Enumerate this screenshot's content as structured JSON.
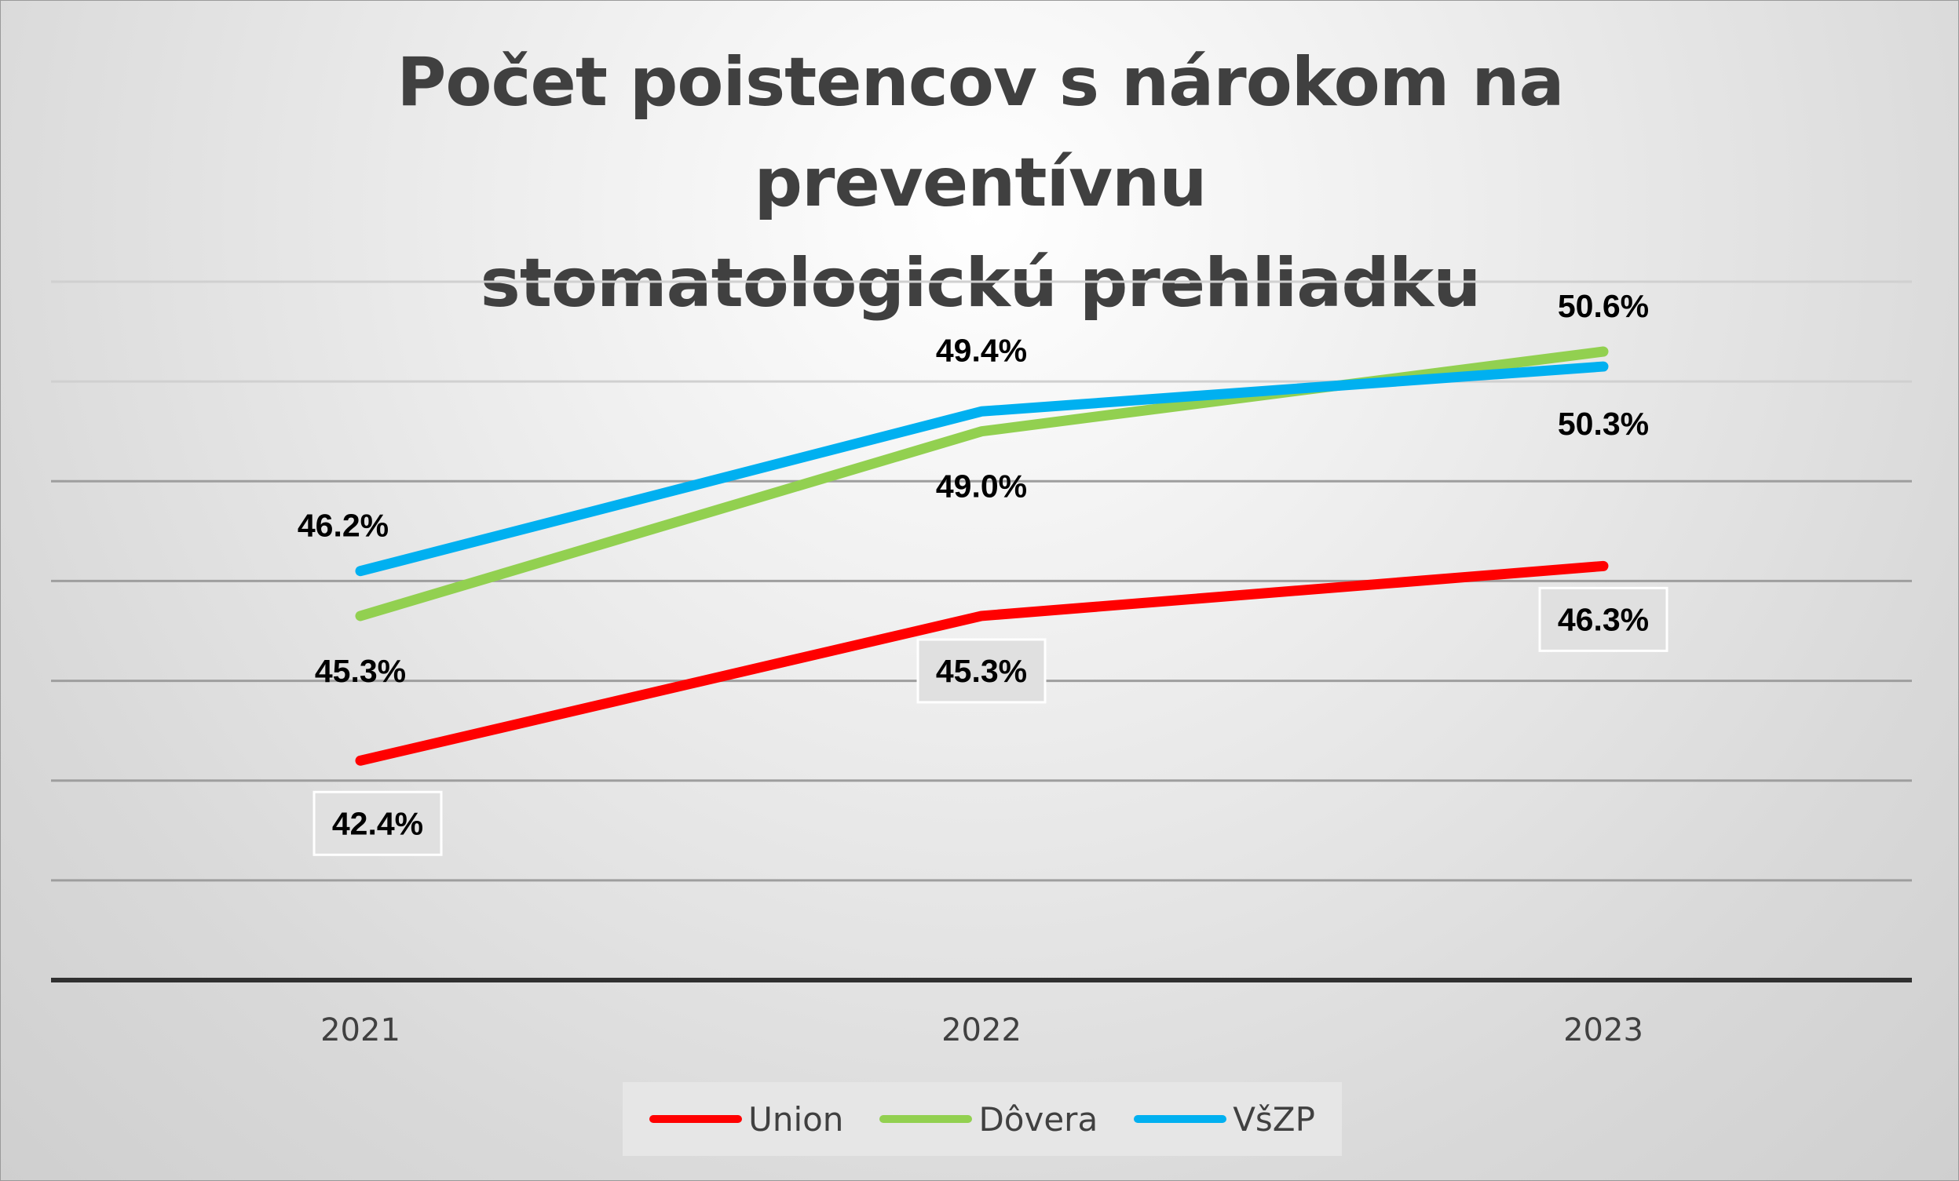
{
  "chart_data": {
    "type": "line",
    "title": "Počet poistencov s nárokom na preventívnu\nstomatologickú prehliadku",
    "categories": [
      "2021",
      "2022",
      "2023"
    ],
    "series": [
      {
        "name": "Union",
        "color": "#ff0000",
        "values": [
          42.4,
          45.3,
          46.3
        ],
        "labels": [
          "42.4%",
          "45.3%",
          "46.3%"
        ]
      },
      {
        "name": "Dôvera",
        "color": "#92d050",
        "values": [
          45.3,
          49.0,
          50.6
        ],
        "labels": [
          "45.3%",
          "49.0%",
          "50.6%"
        ]
      },
      {
        "name": "VšZP",
        "color": "#00b0f0",
        "values": [
          46.2,
          49.4,
          50.3
        ],
        "labels": [
          "46.2%",
          "49.4%",
          "50.3%"
        ]
      }
    ],
    "ylim": [
      38,
      52
    ],
    "grid": true,
    "legend": "bottom",
    "xlabel": "",
    "ylabel": ""
  }
}
